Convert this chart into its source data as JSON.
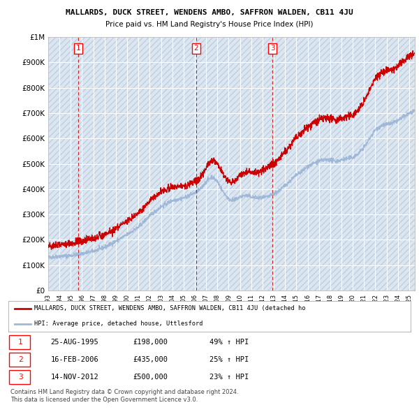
{
  "title1": "MALLARDS, DUCK STREET, WENDENS AMBO, SAFFRON WALDEN, CB11 4JU",
  "title2": "Price paid vs. HM Land Registry's House Price Index (HPI)",
  "ylabel_ticks": [
    "£0",
    "£100K",
    "£200K",
    "£300K",
    "£400K",
    "£500K",
    "£600K",
    "£700K",
    "£800K",
    "£900K",
    "£1M"
  ],
  "ytick_values": [
    0,
    100000,
    200000,
    300000,
    400000,
    500000,
    600000,
    700000,
    800000,
    900000,
    1000000
  ],
  "ylim": [
    0,
    1000000
  ],
  "sale_years": [
    1995.646,
    2006.121,
    2012.873
  ],
  "sale_prices": [
    198000,
    435000,
    500000
  ],
  "sale_labels": [
    "1",
    "2",
    "3"
  ],
  "legend_line1": "MALLARDS, DUCK STREET, WENDENS AMBO, SAFFRON WALDEN, CB11 4JU (detached ho",
  "legend_line2": "HPI: Average price, detached house, Uttlesford",
  "table_data": [
    [
      "1",
      "25-AUG-1995",
      "£198,000",
      "49% ↑ HPI"
    ],
    [
      "2",
      "16-FEB-2006",
      "£435,000",
      "25% ↑ HPI"
    ],
    [
      "3",
      "14-NOV-2012",
      "£500,000",
      "23% ↑ HPI"
    ]
  ],
  "footnote1": "Contains HM Land Registry data © Crown copyright and database right 2024.",
  "footnote2": "This data is licensed under the Open Government Licence v3.0.",
  "plot_bg_color": "#dce6f1",
  "hatch_color": "#bfcfdf",
  "grid_color": "#ffffff",
  "sale_color": "#cc0000",
  "hpi_color": "#a0b8d8",
  "dashed_line_color": "#cc0000",
  "xlim_start": 1993.0,
  "xlim_end": 2025.5
}
